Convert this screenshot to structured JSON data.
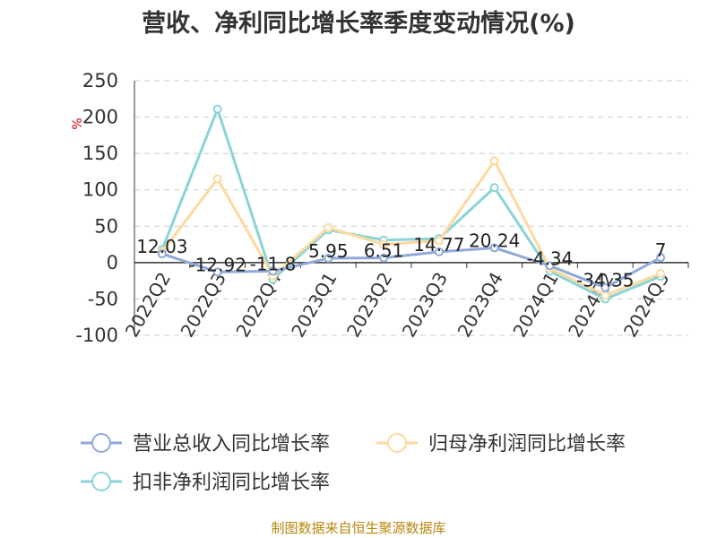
{
  "chart_data": {
    "type": "line",
    "title": "营收、净利同比增长率季度变动情况(%)",
    "ylabel": "%",
    "ylim": [
      -100,
      250
    ],
    "yticks": [
      -100,
      -50,
      0,
      50,
      100,
      150,
      200,
      250
    ],
    "grid": true,
    "categories": [
      "2022Q2",
      "2022Q3",
      "2022Q4",
      "2023Q1",
      "2023Q2",
      "2023Q3",
      "2023Q4",
      "2024Q1",
      "2024Q2",
      "2024Q3"
    ],
    "series": [
      {
        "name": "营业总收入同比增长率",
        "color": "#8fa9d9",
        "values": [
          12.03,
          -12.92,
          -11.8,
          5.95,
          6.51,
          14.77,
          20.24,
          -4.34,
          -34.35,
          7
        ],
        "labels": [
          "12.03",
          "-12.92",
          "-11.8",
          "5.95",
          "6.51",
          "14.77",
          "20.24",
          "-4.34",
          "-34.35",
          "7"
        ]
      },
      {
        "name": "归母净利润同比增长率",
        "color": "#fdd9a0",
        "values": [
          15,
          115,
          -18,
          48,
          25,
          30,
          140,
          -8,
          -45,
          -15
        ]
      },
      {
        "name": "扣非净利润同比增长率",
        "color": "#8ad4d8",
        "values": [
          18,
          211,
          -23,
          45,
          31,
          33,
          103,
          -12,
          -50,
          -19
        ]
      }
    ],
    "legend_position": "bottom"
  },
  "source": "制图数据来自恒生聚源数据库"
}
